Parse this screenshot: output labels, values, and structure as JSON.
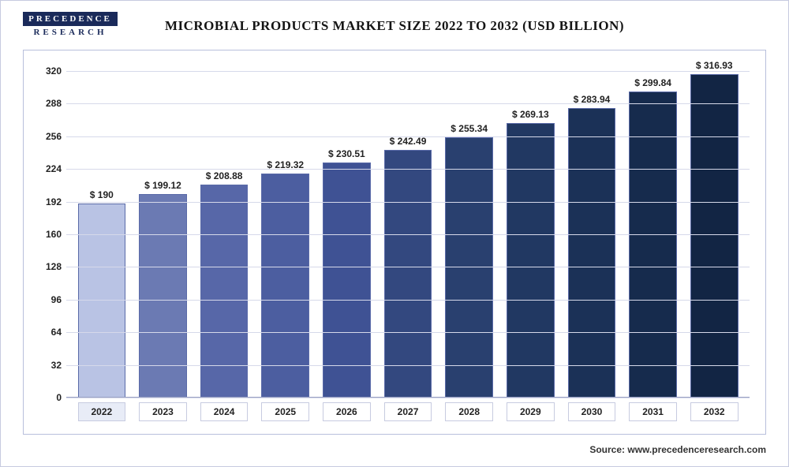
{
  "logo": {
    "top": "PRECEDENCE",
    "bottom": "RESEARCH"
  },
  "title": "MICROBIAL PRODUCTS MARKET SIZE 2022 TO 2032 (USD BILLION)",
  "source": "Source: www.precedenceresearch.com",
  "chart": {
    "type": "bar",
    "ylim": [
      0,
      320
    ],
    "ytick_step": 32,
    "yticks": [
      0,
      32,
      64,
      96,
      128,
      160,
      192,
      224,
      256,
      288,
      320
    ],
    "grid_color": "#d6d9ea",
    "background_color": "#ffffff",
    "border_color": "#b8bfdc",
    "label_fontsize": 12,
    "title_fontsize": 17,
    "bar_width": 0.78,
    "value_prefix": "$ ",
    "categories": [
      "2022",
      "2023",
      "2024",
      "2025",
      "2026",
      "2027",
      "2028",
      "2029",
      "2030",
      "2031",
      "2032"
    ],
    "values": [
      190,
      199.12,
      208.88,
      219.32,
      230.51,
      242.49,
      255.34,
      269.13,
      283.94,
      299.84,
      316.93
    ],
    "value_labels": [
      "$ 190",
      "$ 199.12",
      "$ 208.88",
      "$ 219.32",
      "$ 230.51",
      "$ 242.49",
      "$ 255.34",
      "$ 269.13",
      "$ 283.94",
      "$ 299.84",
      "$ 316.93"
    ],
    "bar_colors": [
      "#b9c3e4",
      "#6b7ab3",
      "#5767a8",
      "#4c5ea0",
      "#3f5294",
      "#33487f",
      "#29406f",
      "#213862",
      "#1b3157",
      "#162b4d",
      "#122544"
    ],
    "bar_border_color": "#5a6aa8",
    "active_category_index": 0
  }
}
